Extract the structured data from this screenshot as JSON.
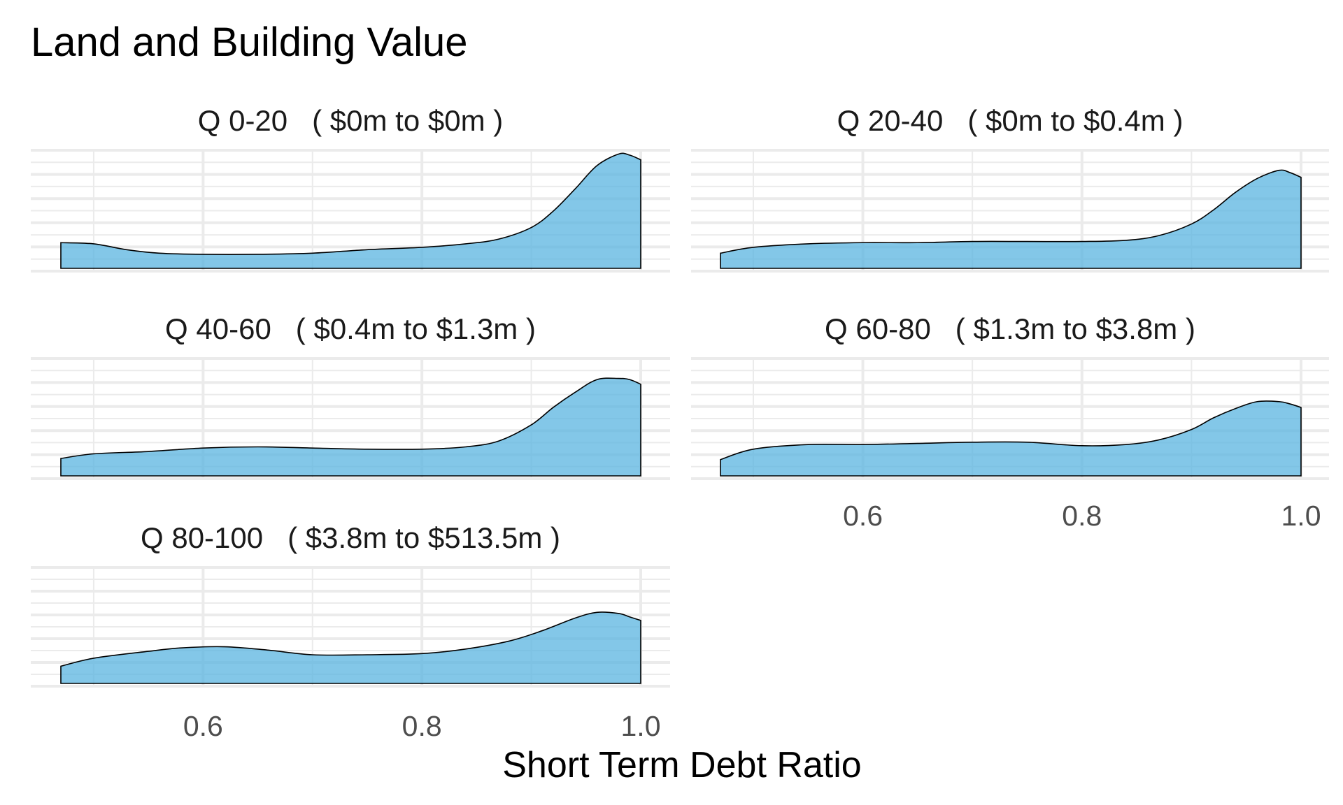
{
  "chart_data": {
    "type": "area",
    "title": "Land and Building Value",
    "xlabel": "Short Term Debt Ratio",
    "ylabel": "",
    "xlim": [
      0.47,
      1.0
    ],
    "ylim": [
      0,
      1
    ],
    "x_ticks": [
      0.6,
      0.8,
      1.0
    ],
    "x_tick_labels": [
      "0.6",
      "0.8",
      "1.0"
    ],
    "grid": true,
    "fill_color": "#5ab4e0",
    "outline_color": "#000000",
    "panels": [
      {
        "name": "Q 0-20   ( $0m to $0m )",
        "x": [
          0.47,
          0.5,
          0.53,
          0.56,
          0.6,
          0.65,
          0.7,
          0.75,
          0.8,
          0.84,
          0.87,
          0.9,
          0.92,
          0.94,
          0.96,
          0.98,
          0.99,
          1.0
        ],
        "y": [
          0.22,
          0.21,
          0.16,
          0.13,
          0.12,
          0.12,
          0.13,
          0.16,
          0.18,
          0.21,
          0.25,
          0.35,
          0.49,
          0.68,
          0.88,
          0.98,
          0.97,
          0.93
        ]
      },
      {
        "name": "Q 20-40   ( $0m to $0.4m )",
        "x": [
          0.47,
          0.5,
          0.55,
          0.6,
          0.65,
          0.7,
          0.75,
          0.8,
          0.84,
          0.87,
          0.9,
          0.92,
          0.94,
          0.96,
          0.98,
          0.99,
          1.0
        ],
        "y": [
          0.13,
          0.18,
          0.21,
          0.22,
          0.22,
          0.23,
          0.23,
          0.23,
          0.24,
          0.28,
          0.38,
          0.5,
          0.65,
          0.77,
          0.84,
          0.82,
          0.78
        ]
      },
      {
        "name": "Q 40-60   ( $0.4m to $1.3m )",
        "x": [
          0.47,
          0.5,
          0.55,
          0.6,
          0.65,
          0.7,
          0.75,
          0.8,
          0.84,
          0.87,
          0.9,
          0.92,
          0.94,
          0.96,
          0.98,
          0.99,
          1.0
        ],
        "y": [
          0.15,
          0.19,
          0.21,
          0.24,
          0.25,
          0.24,
          0.23,
          0.23,
          0.25,
          0.3,
          0.44,
          0.59,
          0.72,
          0.83,
          0.84,
          0.83,
          0.79
        ]
      },
      {
        "name": "Q 60-80   ( $1.3m to $3.8m )",
        "x": [
          0.47,
          0.5,
          0.55,
          0.6,
          0.65,
          0.7,
          0.75,
          0.8,
          0.84,
          0.87,
          0.9,
          0.92,
          0.94,
          0.96,
          0.98,
          0.99,
          1.0
        ],
        "y": [
          0.14,
          0.23,
          0.27,
          0.27,
          0.28,
          0.29,
          0.29,
          0.26,
          0.27,
          0.31,
          0.4,
          0.5,
          0.58,
          0.64,
          0.64,
          0.62,
          0.59
        ]
      },
      {
        "name": "Q 80-100   ( $3.8m to $513.5m )",
        "x": [
          0.47,
          0.5,
          0.55,
          0.58,
          0.62,
          0.66,
          0.7,
          0.75,
          0.8,
          0.84,
          0.88,
          0.91,
          0.94,
          0.96,
          0.98,
          0.99,
          1.0
        ],
        "y": [
          0.15,
          0.22,
          0.28,
          0.31,
          0.32,
          0.29,
          0.25,
          0.25,
          0.26,
          0.3,
          0.37,
          0.46,
          0.57,
          0.62,
          0.61,
          0.58,
          0.55
        ]
      }
    ]
  }
}
